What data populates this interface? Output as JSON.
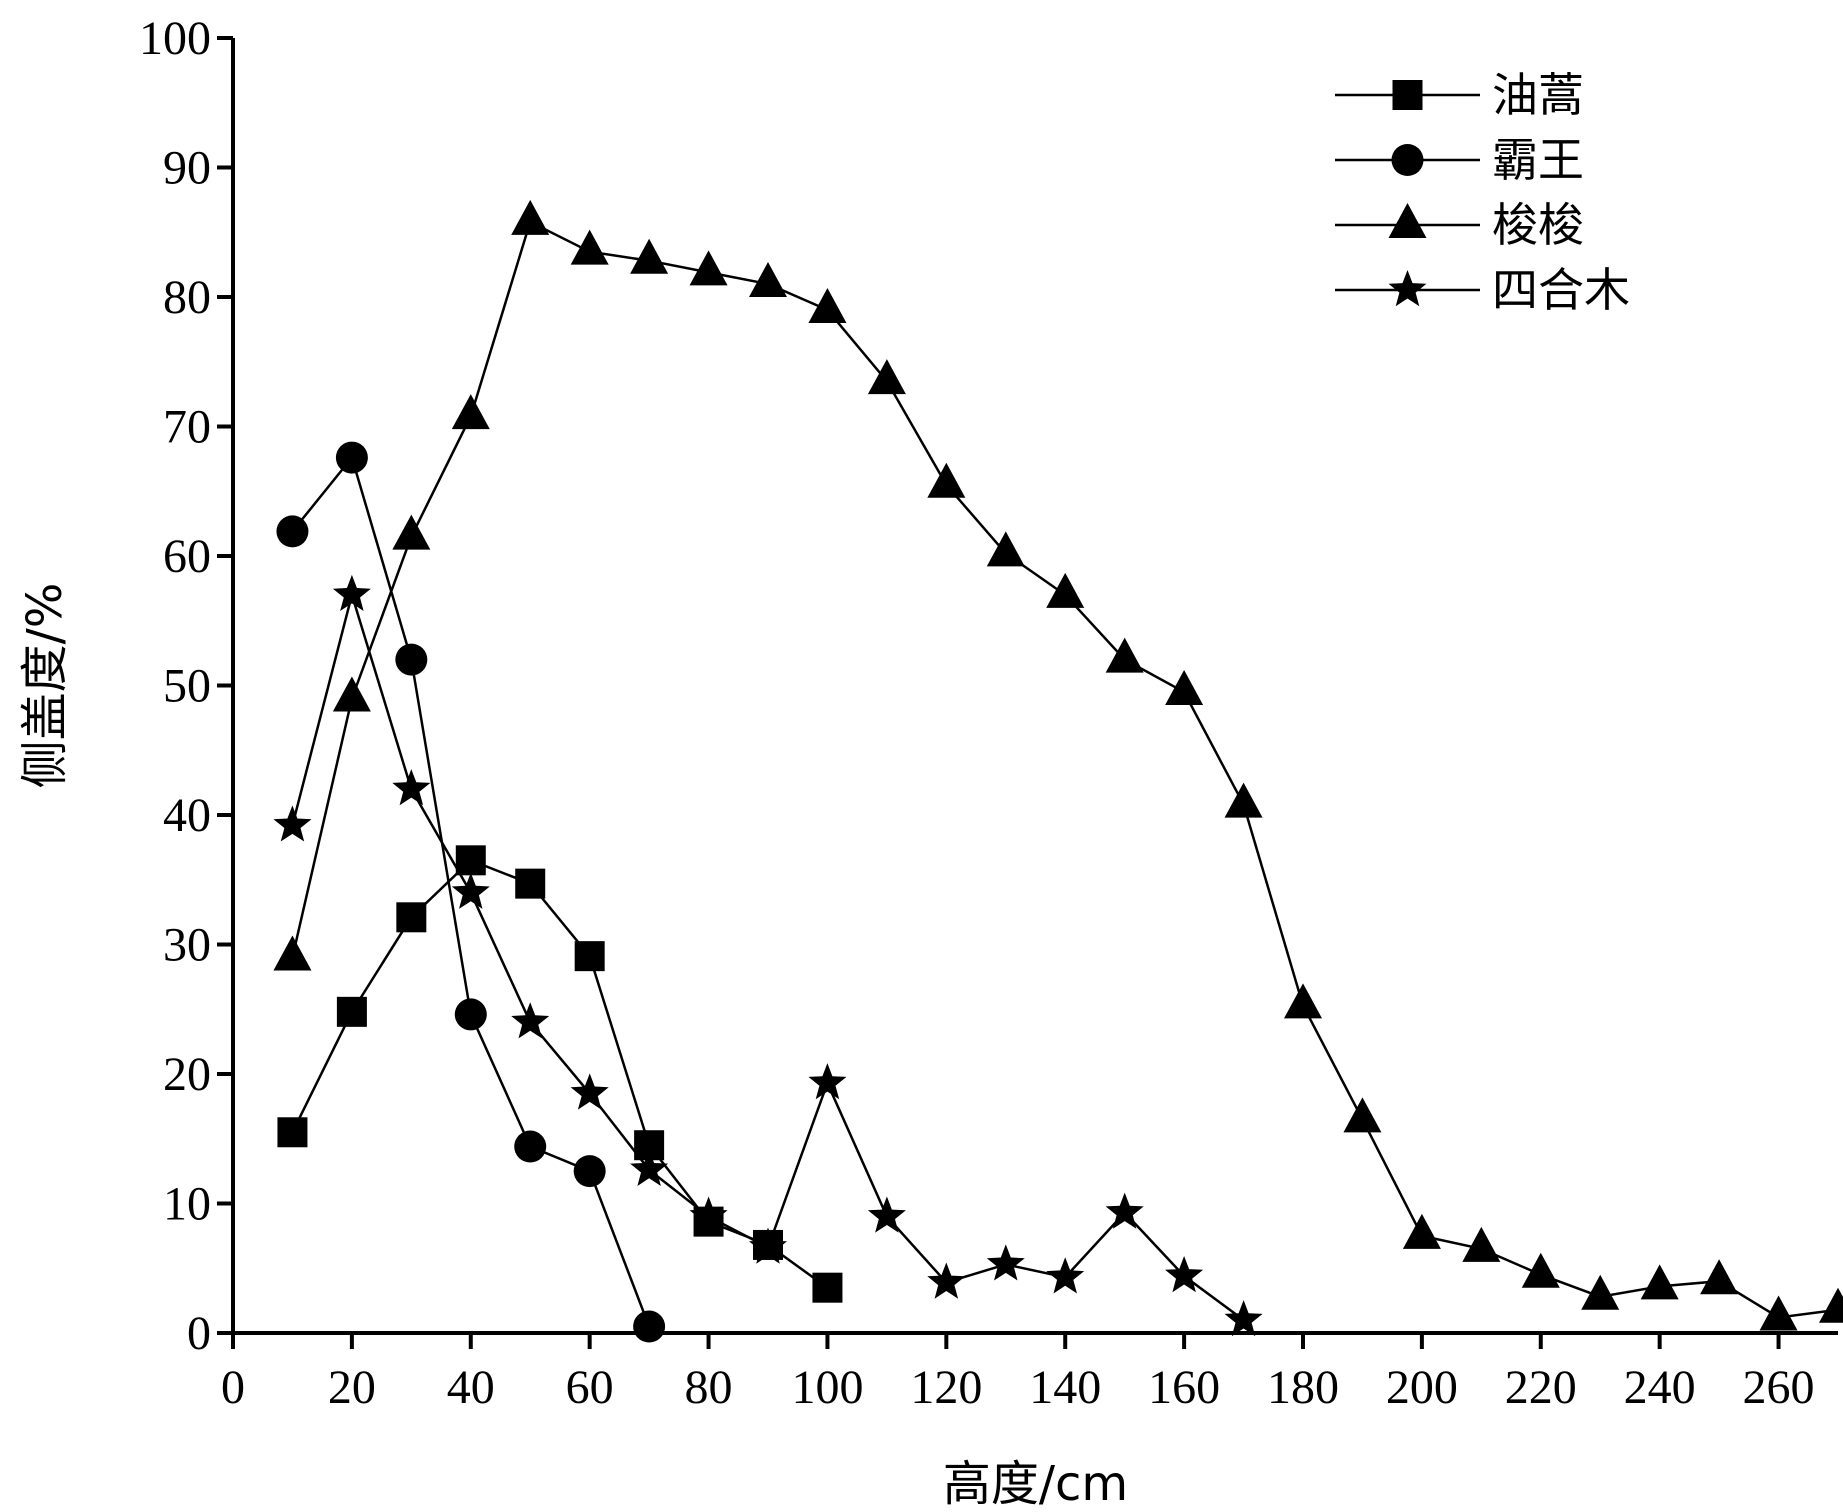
{
  "chart_data": {
    "type": "line",
    "xlabel": "高度/cm",
    "ylabel": "侧盖度/%",
    "xlim": [
      0,
      270
    ],
    "ylim": [
      0,
      100
    ],
    "xticks": [
      0,
      20,
      40,
      60,
      80,
      100,
      120,
      140,
      160,
      180,
      200,
      220,
      240,
      260
    ],
    "yticks": [
      0,
      10,
      20,
      30,
      40,
      50,
      60,
      70,
      80,
      90,
      100
    ],
    "grid": false,
    "legend_position": "top-right",
    "series": [
      {
        "name": "油蒿",
        "marker": "square",
        "x": [
          10,
          20,
          30,
          40,
          50,
          60,
          70,
          80,
          90,
          100
        ],
        "y": [
          15.5,
          24.8,
          32.1,
          36.5,
          34.7,
          29.1,
          14.5,
          8.6,
          6.8,
          3.5
        ]
      },
      {
        "name": "霸王",
        "marker": "circle",
        "x": [
          10,
          20,
          30,
          40,
          50,
          60,
          70
        ],
        "y": [
          61.9,
          67.6,
          52.0,
          24.6,
          14.4,
          12.5,
          0.5
        ]
      },
      {
        "name": "梭梭",
        "marker": "triangle",
        "x": [
          10,
          20,
          30,
          40,
          50,
          60,
          70,
          80,
          90,
          100,
          110,
          120,
          130,
          140,
          150,
          160,
          170,
          180,
          190,
          200,
          210,
          220,
          230,
          240,
          250,
          260,
          270
        ],
        "y": [
          29.0,
          49.0,
          61.5,
          70.8,
          85.8,
          83.5,
          82.8,
          81.9,
          81.0,
          79.0,
          73.5,
          65.5,
          60.2,
          57.0,
          52.0,
          49.5,
          40.8,
          25.3,
          16.5,
          7.5,
          6.5,
          4.5,
          2.8,
          3.6,
          4.0,
          1.2,
          1.8
        ]
      },
      {
        "name": "四合木",
        "marker": "star",
        "x": [
          10,
          20,
          30,
          40,
          50,
          60,
          70,
          80,
          90,
          100,
          110,
          120,
          130,
          140,
          150,
          160,
          170
        ],
        "y": [
          39.2,
          57.0,
          42.0,
          34.0,
          24.0,
          18.5,
          12.6,
          9.0,
          6.6,
          19.3,
          9.0,
          3.9,
          5.3,
          4.3,
          9.3,
          4.4,
          1.0
        ]
      }
    ]
  }
}
